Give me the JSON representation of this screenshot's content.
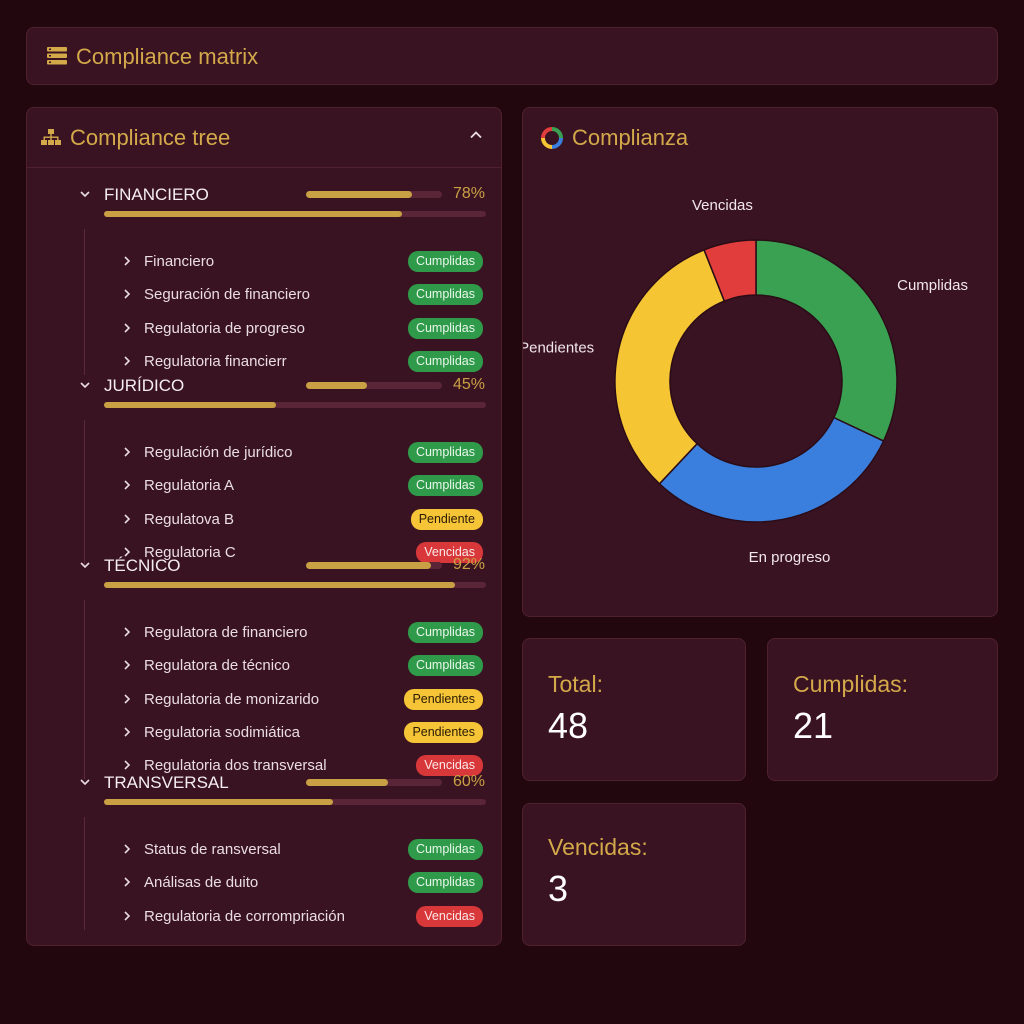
{
  "header": {
    "title": "Compliance matrix",
    "icon": "list-icon"
  },
  "tree": {
    "title": "Compliance tree",
    "icon": "hierarchy-icon",
    "groups": [
      {
        "name": "FINANCIERO",
        "percent_label": "78%",
        "progress": 0.78,
        "items": [
          {
            "label": "Financiero",
            "status": "Cumplidas",
            "tone": "green"
          },
          {
            "label": "Seguración de financiero",
            "status": "Cumplidas",
            "tone": "green"
          },
          {
            "label": "Regulatoria de progreso",
            "status": "Cumplidas",
            "tone": "green"
          },
          {
            "label": "Regulatoria financierr",
            "status": "Cumplidas",
            "tone": "green"
          }
        ]
      },
      {
        "name": "JURÍDICO",
        "percent_label": "45%",
        "progress": 0.45,
        "items": [
          {
            "label": "Regulación de jurídico",
            "status": "Cumplidas",
            "tone": "green"
          },
          {
            "label": "Regulatoria A",
            "status": "Cumplidas",
            "tone": "green"
          },
          {
            "label": "Regulatova B",
            "status": "Pendiente",
            "tone": "yellow"
          },
          {
            "label": "Regulatoria C",
            "status": "Vencidas",
            "tone": "red"
          }
        ]
      },
      {
        "name": "TÉCNICO",
        "percent_label": "92%",
        "progress": 0.92,
        "items": [
          {
            "label": "Regulatora de financiero",
            "status": "Cumplidas",
            "tone": "green"
          },
          {
            "label": "Regulatora de técnico",
            "status": "Cumplidas",
            "tone": "green"
          },
          {
            "label": "Regulatoria de monizarido",
            "status": "Pendientes",
            "tone": "yellow"
          },
          {
            "label": "Regulatoria sodimiática",
            "status": "Pendientes",
            "tone": "yellow"
          },
          {
            "label": "Regulatoria dos transversal",
            "status": "Vencidas",
            "tone": "red"
          }
        ]
      },
      {
        "name": "TRANSVERSAL",
        "percent_label": "60%",
        "progress": 0.6,
        "items": [
          {
            "label": "Status de ransversal",
            "status": "Cumplidas",
            "tone": "green"
          },
          {
            "label": "Análisas de duito",
            "status": "Cumplidas",
            "tone": "green"
          },
          {
            "label": "Regulatoria de corrompriación",
            "status": "Vencidas",
            "tone": "red"
          }
        ]
      }
    ]
  },
  "chart": {
    "title": "Complianza",
    "icon": "donut-chart-icon"
  },
  "chart_data": {
    "type": "pie",
    "title": "Complianza",
    "donut": true,
    "labels": [
      "Cumplidas",
      "En progreso",
      "Pendientes",
      "Vencidas"
    ],
    "values": [
      32,
      30,
      32,
      6
    ],
    "colors": [
      "#3aa152",
      "#3b7fde",
      "#f6c534",
      "#e13d3c"
    ]
  },
  "stats": {
    "total": {
      "label": "Total:",
      "value": "48"
    },
    "cumplidas": {
      "label": "Cumplidas:",
      "value": "21"
    },
    "vencidas": {
      "label": "Vencidas:",
      "value": "3"
    }
  }
}
